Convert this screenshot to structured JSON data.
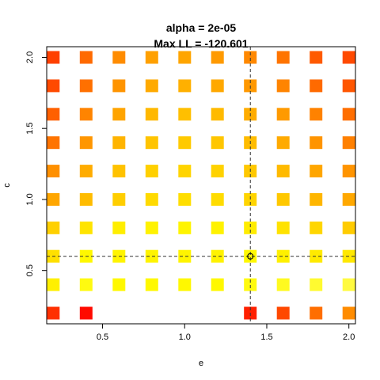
{
  "chart_data": {
    "type": "heatmap",
    "title_lines": [
      "alpha =  2e-05",
      "Max LL =  -120.601"
    ],
    "xlabel": "e",
    "ylabel": "c",
    "xlim": [
      0.16,
      2.04
    ],
    "ylim": [
      0.125,
      2.075
    ],
    "x_ticks": [
      0.5,
      1.0,
      1.5,
      2.0
    ],
    "x_tick_labels": [
      "0.5",
      "1.0",
      "1.5",
      "2.0"
    ],
    "y_ticks": [
      0.5,
      1.0,
      1.5,
      2.0
    ],
    "y_tick_labels": [
      "0.5",
      "1.0",
      "1.5",
      "2.0"
    ],
    "x_values": [
      0.2,
      0.4,
      0.6,
      0.8,
      1.0,
      1.2,
      1.4,
      1.6,
      1.8,
      2.0
    ],
    "y_values": [
      0.2,
      0.4,
      0.6,
      0.8,
      1.0,
      1.2,
      1.4,
      1.6,
      1.8,
      2.0
    ],
    "cells": [
      {
        "x": 0.2,
        "y": 2.0,
        "color": "#FF4000"
      },
      {
        "x": 0.4,
        "y": 2.0,
        "color": "#FF6A00"
      },
      {
        "x": 0.6,
        "y": 2.0,
        "color": "#FF8C00"
      },
      {
        "x": 0.8,
        "y": 2.0,
        "color": "#FFA000"
      },
      {
        "x": 1.0,
        "y": 2.0,
        "color": "#FFA500"
      },
      {
        "x": 1.2,
        "y": 2.0,
        "color": "#FF9A00"
      },
      {
        "x": 1.4,
        "y": 2.0,
        "color": "#FF8800"
      },
      {
        "x": 1.6,
        "y": 2.0,
        "color": "#FF7400"
      },
      {
        "x": 1.8,
        "y": 2.0,
        "color": "#FF5A00"
      },
      {
        "x": 2.0,
        "y": 2.0,
        "color": "#FF4A00"
      },
      {
        "x": 0.2,
        "y": 1.8,
        "color": "#FF4A00"
      },
      {
        "x": 0.4,
        "y": 1.8,
        "color": "#FF7000"
      },
      {
        "x": 0.6,
        "y": 1.8,
        "color": "#FF9400"
      },
      {
        "x": 0.8,
        "y": 1.8,
        "color": "#FFAA00"
      },
      {
        "x": 1.0,
        "y": 1.8,
        "color": "#FFB000"
      },
      {
        "x": 1.2,
        "y": 1.8,
        "color": "#FFA800"
      },
      {
        "x": 1.4,
        "y": 1.8,
        "color": "#FF9800"
      },
      {
        "x": 1.6,
        "y": 1.8,
        "color": "#FF8400"
      },
      {
        "x": 1.8,
        "y": 1.8,
        "color": "#FF6A00"
      },
      {
        "x": 2.0,
        "y": 1.8,
        "color": "#FF5600"
      },
      {
        "x": 0.2,
        "y": 1.6,
        "color": "#FF6000"
      },
      {
        "x": 0.4,
        "y": 1.6,
        "color": "#FF8400"
      },
      {
        "x": 0.6,
        "y": 1.6,
        "color": "#FFA400"
      },
      {
        "x": 0.8,
        "y": 1.6,
        "color": "#FFB800"
      },
      {
        "x": 1.0,
        "y": 1.6,
        "color": "#FFBF00"
      },
      {
        "x": 1.2,
        "y": 1.6,
        "color": "#FFBA00"
      },
      {
        "x": 1.4,
        "y": 1.6,
        "color": "#FFAC00"
      },
      {
        "x": 1.6,
        "y": 1.6,
        "color": "#FF9A00"
      },
      {
        "x": 1.8,
        "y": 1.6,
        "color": "#FF8200"
      },
      {
        "x": 2.0,
        "y": 1.6,
        "color": "#FF6E00"
      },
      {
        "x": 0.2,
        "y": 1.4,
        "color": "#FF7400"
      },
      {
        "x": 0.4,
        "y": 1.4,
        "color": "#FF9600"
      },
      {
        "x": 0.6,
        "y": 1.4,
        "color": "#FFB400"
      },
      {
        "x": 0.8,
        "y": 1.4,
        "color": "#FFC400"
      },
      {
        "x": 1.0,
        "y": 1.4,
        "color": "#FFCA00"
      },
      {
        "x": 1.2,
        "y": 1.4,
        "color": "#FFC600"
      },
      {
        "x": 1.4,
        "y": 1.4,
        "color": "#FFBC00"
      },
      {
        "x": 1.6,
        "y": 1.4,
        "color": "#FFAA00"
      },
      {
        "x": 1.8,
        "y": 1.4,
        "color": "#FF9400"
      },
      {
        "x": 2.0,
        "y": 1.4,
        "color": "#FF8000"
      },
      {
        "x": 0.2,
        "y": 1.2,
        "color": "#FF9000"
      },
      {
        "x": 0.4,
        "y": 1.2,
        "color": "#FFAC00"
      },
      {
        "x": 0.6,
        "y": 1.2,
        "color": "#FFC200"
      },
      {
        "x": 0.8,
        "y": 1.2,
        "color": "#FFD000"
      },
      {
        "x": 1.0,
        "y": 1.2,
        "color": "#FFD400"
      },
      {
        "x": 1.2,
        "y": 1.2,
        "color": "#FFD200"
      },
      {
        "x": 1.4,
        "y": 1.2,
        "color": "#FFC800"
      },
      {
        "x": 1.6,
        "y": 1.2,
        "color": "#FFBA00"
      },
      {
        "x": 1.8,
        "y": 1.2,
        "color": "#FFA600"
      },
      {
        "x": 2.0,
        "y": 1.2,
        "color": "#FF9400"
      },
      {
        "x": 0.2,
        "y": 1.0,
        "color": "#FFA600"
      },
      {
        "x": 0.4,
        "y": 1.0,
        "color": "#FFBC00"
      },
      {
        "x": 0.6,
        "y": 1.0,
        "color": "#FFCE00"
      },
      {
        "x": 0.8,
        "y": 1.0,
        "color": "#FFDA00"
      },
      {
        "x": 1.0,
        "y": 1.0,
        "color": "#FFDE00"
      },
      {
        "x": 1.2,
        "y": 1.0,
        "color": "#FFDC00"
      },
      {
        "x": 1.4,
        "y": 1.0,
        "color": "#FFD400"
      },
      {
        "x": 1.6,
        "y": 1.0,
        "color": "#FFC800"
      },
      {
        "x": 1.8,
        "y": 1.0,
        "color": "#FFB600"
      },
      {
        "x": 2.0,
        "y": 1.0,
        "color": "#FFA800"
      },
      {
        "x": 0.2,
        "y": 0.8,
        "color": "#FFD000"
      },
      {
        "x": 0.4,
        "y": 0.8,
        "color": "#FFE400"
      },
      {
        "x": 0.6,
        "y": 0.8,
        "color": "#FFEE00"
      },
      {
        "x": 0.8,
        "y": 0.8,
        "color": "#FFF200"
      },
      {
        "x": 1.0,
        "y": 0.8,
        "color": "#FFF400"
      },
      {
        "x": 1.2,
        "y": 0.8,
        "color": "#FFF200"
      },
      {
        "x": 1.4,
        "y": 0.8,
        "color": "#FFEC00"
      },
      {
        "x": 1.6,
        "y": 0.8,
        "color": "#FFE200"
      },
      {
        "x": 1.8,
        "y": 0.8,
        "color": "#FFD600"
      },
      {
        "x": 2.0,
        "y": 0.8,
        "color": "#FFCC00"
      },
      {
        "x": 0.2,
        "y": 0.6,
        "color": "#FFE000"
      },
      {
        "x": 0.4,
        "y": 0.6,
        "color": "#FFF800"
      },
      {
        "x": 0.6,
        "y": 0.6,
        "color": "#FFF400"
      },
      {
        "x": 0.8,
        "y": 0.6,
        "color": "#FFF400"
      },
      {
        "x": 1.0,
        "y": 0.6,
        "color": "#FFF400"
      },
      {
        "x": 1.2,
        "y": 0.6,
        "color": "#FFF200"
      },
      {
        "x": 1.4,
        "y": 0.6,
        "color": "#FFF800"
      },
      {
        "x": 1.6,
        "y": 0.6,
        "color": "#FFF000"
      },
      {
        "x": 1.8,
        "y": 0.6,
        "color": "#FFEA00"
      },
      {
        "x": 2.0,
        "y": 0.6,
        "color": "#FFE800"
      },
      {
        "x": 0.2,
        "y": 0.4,
        "color": "#FFF000"
      },
      {
        "x": 0.4,
        "y": 0.4,
        "color": "#FFFA10"
      },
      {
        "x": 0.6,
        "y": 0.4,
        "color": "#FFF800"
      },
      {
        "x": 0.8,
        "y": 0.4,
        "color": "#FFF800"
      },
      {
        "x": 1.0,
        "y": 0.4,
        "color": "#FFF800"
      },
      {
        "x": 1.2,
        "y": 0.4,
        "color": "#FFF800"
      },
      {
        "x": 1.4,
        "y": 0.4,
        "color": "#FFFA10"
      },
      {
        "x": 1.6,
        "y": 0.4,
        "color": "#FFFA20"
      },
      {
        "x": 1.8,
        "y": 0.4,
        "color": "#FFFA30"
      },
      {
        "x": 2.0,
        "y": 0.4,
        "color": "#FFFA40"
      },
      {
        "x": 0.2,
        "y": 0.2,
        "color": "#FF3000"
      },
      {
        "x": 0.4,
        "y": 0.2,
        "color": "#FF0A00"
      },
      {
        "x": 1.4,
        "y": 0.2,
        "color": "#FF2000"
      },
      {
        "x": 1.6,
        "y": 0.2,
        "color": "#FF4800"
      },
      {
        "x": 1.8,
        "y": 0.2,
        "color": "#FF6E00"
      },
      {
        "x": 2.0,
        "y": 0.2,
        "color": "#FF8C00"
      }
    ],
    "max_point": {
      "x": 1.4,
      "y": 0.6
    },
    "reference_lines": {
      "vertical_x": 1.4,
      "horizontal_y": 0.6,
      "style": "dashed"
    },
    "grid": false,
    "legend": "none"
  }
}
